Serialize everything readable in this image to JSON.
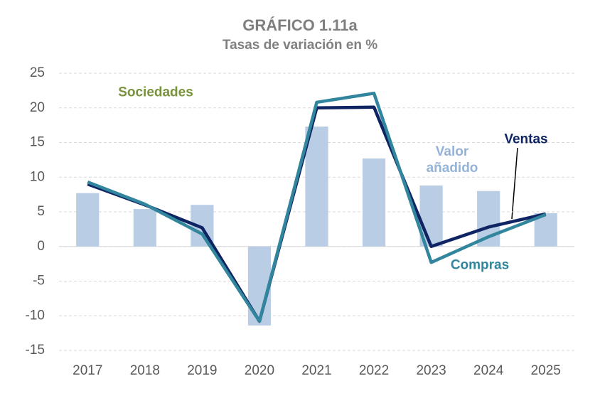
{
  "chart_data": {
    "type": "combo",
    "title": "GRÁFICO 1.11a",
    "subtitle": "Tasas de variación en %",
    "annotation": "Sociedades",
    "categories": [
      "2017",
      "2018",
      "2019",
      "2020",
      "2021",
      "2022",
      "2023",
      "2024",
      "2025"
    ],
    "series": [
      {
        "name": "Valor añadido",
        "type": "bar",
        "color": "#b9cde5",
        "label_color": "#95b3d7",
        "values": [
          7.7,
          5.4,
          6.0,
          -11.4,
          17.3,
          12.7,
          8.8,
          8.0,
          4.8
        ]
      },
      {
        "name": "Ventas",
        "type": "line",
        "color": "#0f2463",
        "label_color": "#0f2463",
        "values": [
          9.0,
          6.0,
          2.7,
          -10.8,
          20.0,
          20.1,
          0.0,
          2.8,
          4.7
        ]
      },
      {
        "name": "Compras",
        "type": "line",
        "color": "#31859c",
        "label_color": "#31859c",
        "values": [
          9.3,
          6.1,
          1.8,
          -10.8,
          20.8,
          22.1,
          -2.3,
          1.4,
          4.6
        ]
      }
    ],
    "ylim": [
      -15,
      25
    ],
    "yticks": [
      -15,
      -10,
      -5,
      0,
      5,
      10,
      15,
      20,
      25
    ],
    "grid": true
  }
}
